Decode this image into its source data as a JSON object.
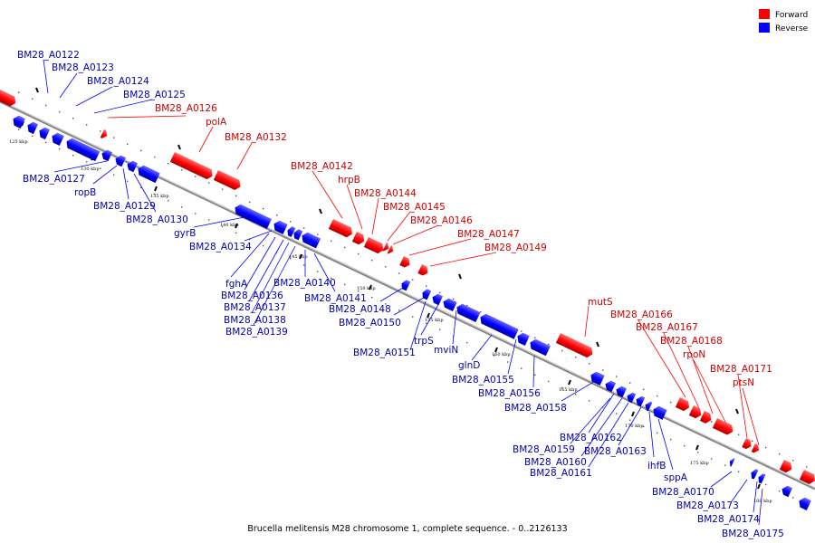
{
  "caption": "Brucella melitensis M28 chromosome 1, complete sequence. - 0..2126133",
  "legend": [
    {
      "label": "Forward",
      "color": "#ff0000"
    },
    {
      "label": "Reverse",
      "color": "#0000ff"
    }
  ],
  "colors": {
    "forward": "#ff0000",
    "reverse": "#0000ff",
    "forward_label": "#cc0000",
    "reverse_label": "#0000aa",
    "axis": "#888888"
  },
  "ticks": [
    "125 kbp",
    "130 kbp",
    "135 kbp",
    "140 kbp",
    "145 kbp",
    "150 kbp",
    "155 kbp",
    "160 kbp",
    "165 kbp",
    "170 kbp",
    "175 kbp",
    "180 kbp"
  ],
  "forward_labels": [
    "BM28_A0126",
    "polA",
    "BM28_A0132",
    "BM28_A0142",
    "hrpB",
    "BM28_A0144",
    "BM28_A0145",
    "BM28_A0146",
    "BM28_A0147",
    "BM28_A0149",
    "mutS",
    "BM28_A0166",
    "BM28_A0167",
    "BM28_A0168",
    "rpoN",
    "BM28_A0171",
    "ptsN"
  ],
  "reverse_top_labels": [
    "BM28_A0122",
    "BM28_A0123",
    "BM28_A0124",
    "BM28_A0125"
  ],
  "reverse_labels": [
    "BM28_A0127",
    "ropB",
    "BM28_A0129",
    "BM28_A0130",
    "gyrB",
    "BM28_A0134",
    "fghA",
    "BM28_A0136",
    "BM28_A0137",
    "BM28_A0138",
    "BM28_A0139",
    "BM28_A0140",
    "BM28_A0141",
    "BM28_A0148",
    "BM28_A0150",
    "BM28_A0151",
    "trpS",
    "mviN",
    "glnD",
    "BM28_A0155",
    "BM28_A0156",
    "BM28_A0158",
    "BM28_A0162",
    "BM28_A0159",
    "BM28_A0160",
    "BM28_A0161",
    "BM28_A0163",
    "ihfB",
    "sppA",
    "BM28_A0170",
    "BM28_A0173",
    "BM28_A0174",
    "BM28_A0175"
  ]
}
